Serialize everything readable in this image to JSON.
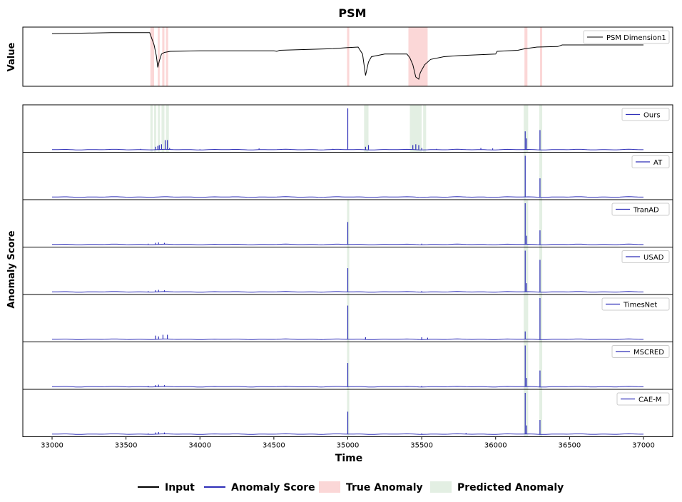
{
  "chart_data": {
    "type": "line",
    "title": "PSM",
    "xlabel": "Time",
    "xlim": [
      33000,
      37000
    ],
    "xticks": [
      33000,
      33500,
      34000,
      34500,
      35000,
      35500,
      36000,
      36500,
      37000
    ],
    "xtick_labels": [
      "33000",
      "33500",
      "34000",
      "34500",
      "35000",
      "35500",
      "36000",
      "36500",
      "37000"
    ],
    "top_panel": {
      "ylabel": "Value",
      "legend": "PSM Dimension1",
      "legend_position": "top-right",
      "ylim": [
        0,
        1
      ],
      "series": [
        {
          "x": 33000,
          "y": 0.93
        },
        {
          "x": 33400,
          "y": 0.95
        },
        {
          "x": 33660,
          "y": 0.95
        },
        {
          "x": 33690,
          "y": 0.72
        },
        {
          "x": 33705,
          "y": 0.52
        },
        {
          "x": 33715,
          "y": 0.3
        },
        {
          "x": 33725,
          "y": 0.42
        },
        {
          "x": 33740,
          "y": 0.55
        },
        {
          "x": 33760,
          "y": 0.58
        },
        {
          "x": 33800,
          "y": 0.6
        },
        {
          "x": 34000,
          "y": 0.61
        },
        {
          "x": 34500,
          "y": 0.61
        },
        {
          "x": 34520,
          "y": 0.6
        },
        {
          "x": 34540,
          "y": 0.62
        },
        {
          "x": 34900,
          "y": 0.65
        },
        {
          "x": 35000,
          "y": 0.67
        },
        {
          "x": 35070,
          "y": 0.68
        },
        {
          "x": 35100,
          "y": 0.55
        },
        {
          "x": 35120,
          "y": 0.15
        },
        {
          "x": 35140,
          "y": 0.4
        },
        {
          "x": 35160,
          "y": 0.5
        },
        {
          "x": 35250,
          "y": 0.55
        },
        {
          "x": 35400,
          "y": 0.55
        },
        {
          "x": 35420,
          "y": 0.48
        },
        {
          "x": 35440,
          "y": 0.35
        },
        {
          "x": 35460,
          "y": 0.12
        },
        {
          "x": 35480,
          "y": 0.08
        },
        {
          "x": 35490,
          "y": 0.2
        },
        {
          "x": 35500,
          "y": 0.25
        },
        {
          "x": 35520,
          "y": 0.35
        },
        {
          "x": 35560,
          "y": 0.45
        },
        {
          "x": 35650,
          "y": 0.5
        },
        {
          "x": 35750,
          "y": 0.52
        },
        {
          "x": 36000,
          "y": 0.55
        },
        {
          "x": 36010,
          "y": 0.6
        },
        {
          "x": 36150,
          "y": 0.62
        },
        {
          "x": 36200,
          "y": 0.65
        },
        {
          "x": 36280,
          "y": 0.68
        },
        {
          "x": 36420,
          "y": 0.69
        },
        {
          "x": 36450,
          "y": 0.72
        },
        {
          "x": 37000,
          "y": 0.72
        }
      ],
      "true_anomaly_ranges": [
        [
          33665,
          33690
        ],
        [
          33715,
          33728
        ],
        [
          33745,
          33760
        ],
        [
          33770,
          33785
        ],
        [
          34995,
          35010
        ],
        [
          35410,
          35540
        ],
        [
          36195,
          36215
        ],
        [
          36300,
          36315
        ]
      ]
    },
    "score_panels_ylabel": "Anomaly Score",
    "score_panels": [
      {
        "name": "Ours",
        "predicted_ranges": [
          [
            33665,
            33680
          ],
          [
            33690,
            33705
          ],
          [
            33715,
            33730
          ],
          [
            33740,
            33760
          ],
          [
            33770,
            33790
          ],
          [
            35110,
            35140
          ],
          [
            35420,
            35500
          ],
          [
            35510,
            35530
          ],
          [
            36190,
            36220
          ],
          [
            36295,
            36315
          ]
        ],
        "spikes": [
          {
            "x": 33700,
            "y": 0.08
          },
          {
            "x": 33715,
            "y": 0.1
          },
          {
            "x": 33725,
            "y": 0.12
          },
          {
            "x": 33740,
            "y": 0.14
          },
          {
            "x": 33765,
            "y": 0.24
          },
          {
            "x": 33780,
            "y": 0.24
          },
          {
            "x": 33795,
            "y": 0.05
          },
          {
            "x": 33600,
            "y": 0.03
          },
          {
            "x": 34000,
            "y": 0.02
          },
          {
            "x": 34400,
            "y": 0.04
          },
          {
            "x": 34900,
            "y": 0.03
          },
          {
            "x": 35000,
            "y": 1.0
          },
          {
            "x": 35120,
            "y": 0.08
          },
          {
            "x": 35140,
            "y": 0.12
          },
          {
            "x": 35440,
            "y": 0.12
          },
          {
            "x": 35460,
            "y": 0.14
          },
          {
            "x": 35480,
            "y": 0.12
          },
          {
            "x": 35500,
            "y": 0.05
          },
          {
            "x": 35600,
            "y": 0.03
          },
          {
            "x": 35900,
            "y": 0.05
          },
          {
            "x": 35980,
            "y": 0.04
          },
          {
            "x": 36200,
            "y": 0.45
          },
          {
            "x": 36210,
            "y": 0.28
          },
          {
            "x": 36300,
            "y": 0.48
          }
        ]
      },
      {
        "name": "AT",
        "predicted_ranges": [
          [
            36190,
            36205
          ],
          [
            36295,
            36315
          ]
        ],
        "spikes": [
          {
            "x": 36200,
            "y": 1.0
          },
          {
            "x": 36300,
            "y": 0.46
          }
        ]
      },
      {
        "name": "TranAD",
        "predicted_ranges": [
          [
            34995,
            35010
          ],
          [
            36190,
            36220
          ],
          [
            36295,
            36315
          ]
        ],
        "spikes": [
          {
            "x": 33650,
            "y": 0.03
          },
          {
            "x": 33700,
            "y": 0.05
          },
          {
            "x": 33720,
            "y": 0.06
          },
          {
            "x": 33760,
            "y": 0.05
          },
          {
            "x": 35000,
            "y": 0.55
          },
          {
            "x": 35500,
            "y": 0.03
          },
          {
            "x": 36200,
            "y": 1.0
          },
          {
            "x": 36210,
            "y": 0.22
          },
          {
            "x": 36300,
            "y": 0.35
          }
        ]
      },
      {
        "name": "USAD",
        "predicted_ranges": [
          [
            34995,
            35010
          ],
          [
            36190,
            36220
          ],
          [
            36295,
            36315
          ]
        ],
        "spikes": [
          {
            "x": 33650,
            "y": 0.03
          },
          {
            "x": 33700,
            "y": 0.05
          },
          {
            "x": 33720,
            "y": 0.06
          },
          {
            "x": 33760,
            "y": 0.05
          },
          {
            "x": 35000,
            "y": 0.58
          },
          {
            "x": 35500,
            "y": 0.03
          },
          {
            "x": 36200,
            "y": 1.0
          },
          {
            "x": 36210,
            "y": 0.22
          },
          {
            "x": 36300,
            "y": 0.78
          }
        ]
      },
      {
        "name": "TimesNet",
        "predicted_ranges": [
          [
            34995,
            35010
          ],
          [
            36190,
            36220
          ],
          [
            36295,
            36315
          ]
        ],
        "spikes": [
          {
            "x": 33700,
            "y": 0.1
          },
          {
            "x": 33720,
            "y": 0.08
          },
          {
            "x": 33750,
            "y": 0.12
          },
          {
            "x": 33780,
            "y": 0.12
          },
          {
            "x": 35000,
            "y": 0.82
          },
          {
            "x": 35120,
            "y": 0.06
          },
          {
            "x": 35500,
            "y": 0.06
          },
          {
            "x": 35540,
            "y": 0.05
          },
          {
            "x": 36200,
            "y": 0.2
          },
          {
            "x": 36300,
            "y": 1.0
          }
        ]
      },
      {
        "name": "MSCRED",
        "predicted_ranges": [
          [
            34995,
            35010
          ],
          [
            36190,
            36220
          ],
          [
            36295,
            36315
          ]
        ],
        "spikes": [
          {
            "x": 33650,
            "y": 0.03
          },
          {
            "x": 33700,
            "y": 0.05
          },
          {
            "x": 33720,
            "y": 0.06
          },
          {
            "x": 33760,
            "y": 0.05
          },
          {
            "x": 35000,
            "y": 0.58
          },
          {
            "x": 35500,
            "y": 0.03
          },
          {
            "x": 36200,
            "y": 1.0
          },
          {
            "x": 36210,
            "y": 0.22
          },
          {
            "x": 36300,
            "y": 0.4
          }
        ]
      },
      {
        "name": "CAE-M",
        "predicted_ranges": [
          [
            34995,
            35010
          ],
          [
            36190,
            36220
          ],
          [
            36295,
            36315
          ]
        ],
        "spikes": [
          {
            "x": 33650,
            "y": 0.03
          },
          {
            "x": 33700,
            "y": 0.05
          },
          {
            "x": 33720,
            "y": 0.06
          },
          {
            "x": 33760,
            "y": 0.05
          },
          {
            "x": 35000,
            "y": 0.55
          },
          {
            "x": 35500,
            "y": 0.03
          },
          {
            "x": 35800,
            "y": 0.04
          },
          {
            "x": 36200,
            "y": 1.0
          },
          {
            "x": 36210,
            "y": 0.22
          },
          {
            "x": 36300,
            "y": 0.35
          }
        ]
      }
    ],
    "bottom_legend": [
      {
        "label": "Input",
        "kind": "line",
        "color": "#000000"
      },
      {
        "label": "Anomaly Score",
        "kind": "line",
        "color": "#2e2eb8"
      },
      {
        "label": "True Anomaly",
        "kind": "patch",
        "color": "#fbd7d7"
      },
      {
        "label": "Predicted Anomaly",
        "kind": "patch",
        "color": "#e3efe3"
      }
    ],
    "colors": {
      "input": "#000000",
      "score": "#2e2eb8",
      "true_anomaly": "#fbd7d7",
      "predicted_anomaly": "#e3efe3"
    }
  }
}
